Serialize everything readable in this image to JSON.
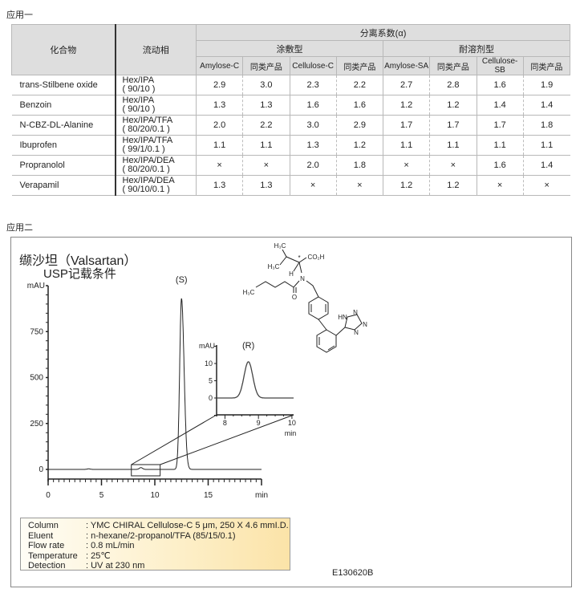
{
  "section1_label": "应用一",
  "section2_label": "应用二",
  "table": {
    "header": {
      "compound": "化合物",
      "mobile_phase": "流动相",
      "alpha": "分离系数(α)",
      "coated": "涂敷型",
      "immobilized": "耐溶剂型",
      "columns": [
        "Amylose-C",
        "同类产品",
        "Cellulose-C",
        "同类产品",
        "Amylose-SA",
        "同类产品",
        "Cellulose-SB",
        "同类产品"
      ]
    },
    "rows": [
      {
        "compound": "trans-Stilbene oxide",
        "mp1": "Hex/IPA",
        "mp2": "( 90/10 )",
        "values": [
          "2.9",
          "3.0",
          "2.3",
          "2.2",
          "2.7",
          "2.8",
          "1.6",
          "1.9"
        ]
      },
      {
        "compound": "Benzoin",
        "mp1": "Hex/IPA",
        "mp2": "( 90/10 )",
        "values": [
          "1.3",
          "1.3",
          "1.6",
          "1.6",
          "1.2",
          "1.2",
          "1.4",
          "1.4"
        ]
      },
      {
        "compound": "N-CBZ-DL-Alanine",
        "mp1": "Hex/IPA/TFA",
        "mp2": "( 80/20/0.1 )",
        "values": [
          "2.0",
          "2.2",
          "3.0",
          "2.9",
          "1.7",
          "1.7",
          "1.7",
          "1.8"
        ]
      },
      {
        "compound": "Ibuprofen",
        "mp1": "Hex/IPA/TFA",
        "mp2": "( 99/1/0.1 )",
        "values": [
          "1.1",
          "1.1",
          "1.3",
          "1.2",
          "1.1",
          "1.1",
          "1.1",
          "1.1"
        ]
      },
      {
        "compound": "Propranolol",
        "mp1": "Hex/IPA/DEA",
        "mp2": "( 80/20/0.1 )",
        "values": [
          "×",
          "×",
          "2.0",
          "1.8",
          "×",
          "×",
          "1.6",
          "1.4"
        ]
      },
      {
        "compound": "Verapamil",
        "mp1": "Hex/IPA/DEA",
        "mp2": "( 90/10/0.1 )",
        "values": [
          "1.3",
          "1.3",
          "×",
          "×",
          "1.2",
          "1.2",
          "×",
          "×"
        ]
      }
    ]
  },
  "figure": {
    "title": "缬沙坦（Valsartan）",
    "subtitle": "USP记载条件",
    "molecule_labels": {
      "m1": "H₃C",
      "m2": "H₃C",
      "co2h": "CO₂H",
      "h": "H",
      "star": "*",
      "n": "N",
      "o": "O",
      "ch3": "H₃C",
      "hn": "HN",
      "n1": "N",
      "n2": "N",
      "n3": "N"
    },
    "conditions": [
      {
        "key": "Column",
        "value": ": YMC CHIRAL Cellulose-C 5 μm, 250 X 4.6 mmI.D."
      },
      {
        "key": "Eluent",
        "value": ": n-hexane/2-propanol/TFA (85/15/0.1)"
      },
      {
        "key": "Flow rate",
        "value": ": 0.8 mL/min"
      },
      {
        "key": "Temperature",
        "value": ": 25℃"
      },
      {
        "key": "Detection",
        "value": ": UV at 230 nm"
      }
    ],
    "code": "E130620B"
  },
  "chart_data": [
    {
      "type": "line",
      "ylabel": "mAU",
      "xlabel": "min",
      "xlim": [
        0,
        20
      ],
      "ylim": [
        0,
        1000
      ],
      "xticks": [
        "0",
        "5",
        "10",
        "15"
      ],
      "yticks": [
        "0",
        "250",
        "500",
        "750"
      ],
      "peaks": [
        {
          "label": "(S)",
          "time": 12.5,
          "height": 930
        },
        {
          "label": "",
          "time": 8.7,
          "height": 10
        },
        {
          "label": "",
          "time": 3.8,
          "height": 3
        }
      ],
      "grid": false
    },
    {
      "type": "line",
      "ylabel": "mAU",
      "xlabel": "min",
      "xlim": [
        7.75,
        10.05
      ],
      "ylim": [
        -5,
        15
      ],
      "xticks": [
        "8",
        "9",
        "10"
      ],
      "yticks": [
        "0",
        "5",
        "10"
      ],
      "peaks": [
        {
          "label": "(R)",
          "time": 8.7,
          "height": 10.5
        }
      ],
      "grid": false
    }
  ]
}
